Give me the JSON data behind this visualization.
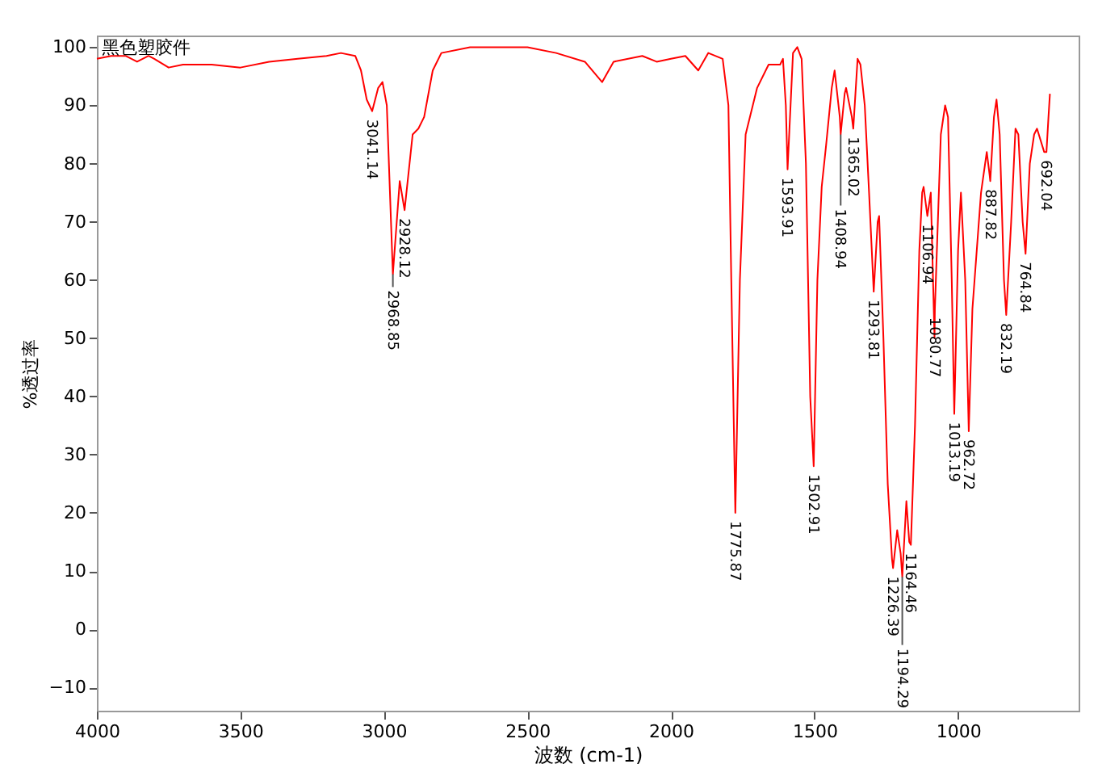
{
  "chart_data": {
    "type": "line",
    "xlabel": "波数 (cm-1)",
    "ylabel": "%透过率",
    "xlim": [
      4000,
      580
    ],
    "ylim": [
      -14,
      102
    ],
    "xticks": [
      4000,
      3500,
      3000,
      2500,
      2000,
      1500,
      1000
    ],
    "yticks": [
      -10,
      0,
      10,
      20,
      30,
      40,
      50,
      60,
      70,
      80,
      90,
      100
    ],
    "grid": false,
    "marker": "none",
    "line_style": "solid",
    "x": [
      4000,
      3950,
      3900,
      3860,
      3820,
      3800,
      3750,
      3700,
      3600,
      3500,
      3400,
      3300,
      3200,
      3150,
      3100,
      3080,
      3060,
      3041.14,
      3020,
      3005,
      2990,
      2968.85,
      2945,
      2928.12,
      2900,
      2880,
      2860,
      2830,
      2800,
      2700,
      2500,
      2400,
      2300,
      2240,
      2200,
      2100,
      2050,
      2000,
      1950,
      1905,
      1870,
      1820,
      1800,
      1790,
      1775.87,
      1760,
      1740,
      1700,
      1660,
      1620,
      1610,
      1600,
      1593.91,
      1575,
      1560,
      1545,
      1530,
      1515,
      1502.91,
      1490,
      1475,
      1460,
      1440,
      1430,
      1412,
      1408.94,
      1395,
      1390,
      1370,
      1365.02,
      1350,
      1340,
      1325,
      1310,
      1293.81,
      1280,
      1275,
      1260,
      1245,
      1230,
      1226.39,
      1212,
      1200,
      1194.29,
      1180,
      1170,
      1164.46,
      1150,
      1135,
      1125,
      1120,
      1106.94,
      1095,
      1082,
      1080.77,
      1060,
      1045,
      1035,
      1022,
      1013.19,
      1000,
      990,
      975,
      962.72,
      950,
      920,
      900,
      890,
      887.82,
      875,
      866,
      855,
      840,
      832.19,
      815,
      800,
      790,
      775,
      764.84,
      750,
      735,
      725,
      700,
      692.04,
      685,
      680
    ],
    "series": [
      {
        "color": "#ff0000",
        "values": [
          98,
          98.5,
          98.5,
          97.5,
          98.5,
          98,
          96.5,
          97,
          97,
          96.5,
          97.5,
          98,
          98.5,
          99,
          98.5,
          96,
          91,
          89,
          93,
          94,
          90,
          61,
          77,
          72,
          85,
          86,
          88,
          96,
          99,
          100,
          100,
          99,
          97.5,
          94,
          97.5,
          98.5,
          97.5,
          98,
          98.5,
          96,
          99,
          98,
          90,
          60,
          20,
          60,
          85,
          93,
          97,
          97,
          98,
          90,
          79,
          99,
          100,
          98,
          80,
          40,
          28,
          60,
          76,
          83,
          93,
          96,
          88,
          85,
          92,
          93,
          88,
          86,
          98,
          97,
          90,
          75,
          58,
          70,
          71,
          50,
          25,
          12,
          10.5,
          17,
          13,
          9,
          22,
          15,
          14.5,
          35,
          65,
          75,
          76,
          71,
          75,
          50,
          55,
          85,
          90,
          88,
          60,
          37,
          65,
          75,
          60,
          34,
          55,
          75,
          82,
          78,
          77,
          88,
          91,
          85,
          60,
          54,
          70,
          86,
          85,
          70,
          64.5,
          80,
          85,
          86,
          82,
          82,
          88,
          92
        ]
      }
    ],
    "annotations": [
      "黑色塑胶件",
      {
        "text": "3041.14",
        "x": 3041.14,
        "y": 89
      },
      {
        "text": "2968.85",
        "x": 2968.85,
        "y": 61
      },
      {
        "text": "2928.12",
        "x": 2928.12,
        "y": 72
      },
      {
        "text": "1775.87",
        "x": 1775.87,
        "y": 20
      },
      {
        "text": "1593.91",
        "x": 1593.91,
        "y": 79
      },
      {
        "text": "1502.91",
        "x": 1502.91,
        "y": 28
      },
      {
        "text": "1408.94",
        "x": 1408.94,
        "y": 85
      },
      {
        "text": "1365.02",
        "x": 1365.02,
        "y": 86
      },
      {
        "text": "1293.81",
        "x": 1293.81,
        "y": 58
      },
      {
        "text": "1226.39",
        "x": 1226.39,
        "y": 10.5
      },
      {
        "text": "1194.29",
        "x": 1194.29,
        "y": 9
      },
      {
        "text": "1164.46",
        "x": 1164.46,
        "y": 14.5
      },
      {
        "text": "1106.94",
        "x": 1106.94,
        "y": 71
      },
      {
        "text": "1080.77",
        "x": 1080.77,
        "y": 55
      },
      {
        "text": "1013.19",
        "x": 1013.19,
        "y": 37
      },
      {
        "text": "962.72",
        "x": 962.72,
        "y": 34
      },
      {
        "text": "887.82",
        "x": 887.82,
        "y": 77
      },
      {
        "text": "832.19",
        "x": 832.19,
        "y": 54
      },
      {
        "text": "764.84",
        "x": 764.84,
        "y": 64.5
      },
      {
        "text": "692.04",
        "x": 692.04,
        "y": 82
      }
    ]
  }
}
